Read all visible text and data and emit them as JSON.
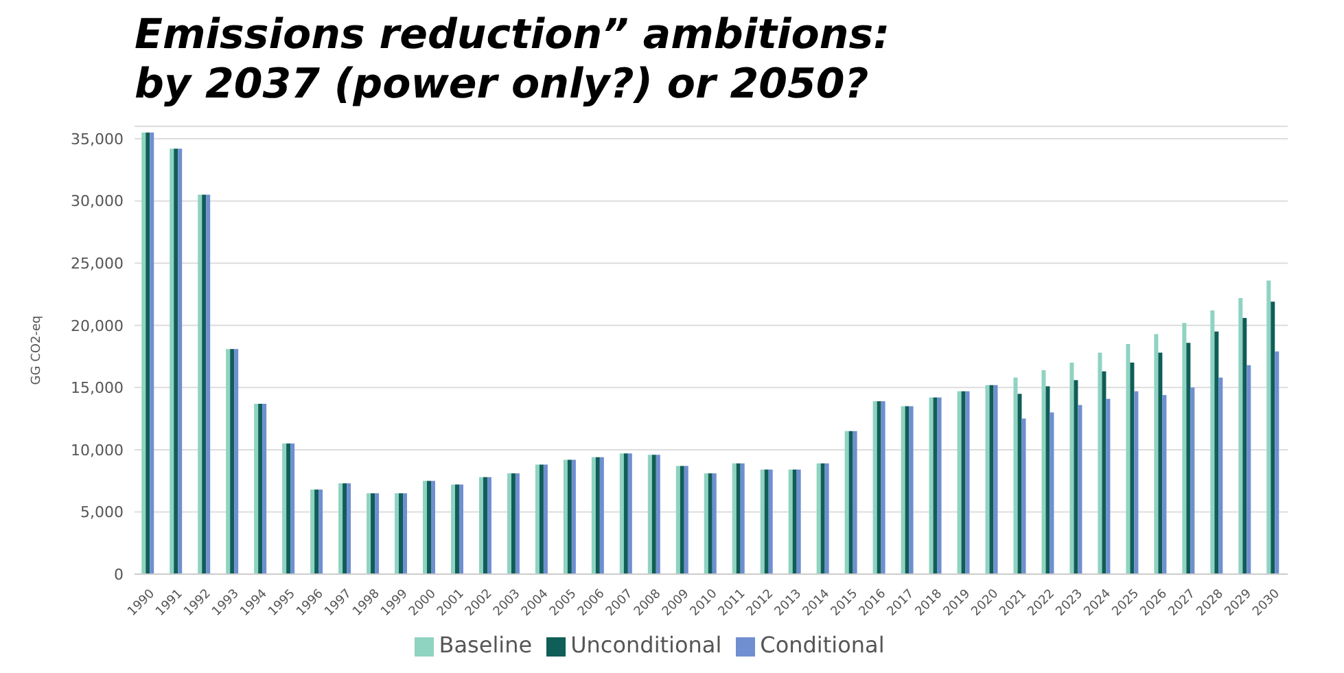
{
  "chart_data": {
    "type": "bar",
    "title": "Emissions reduction” ambitions: by 2037 (power only?) or 2050?",
    "ylabel": "GG CO2-eq",
    "categories": [
      "1990",
      "1991",
      "1992",
      "1993",
      "1994",
      "1995",
      "1996",
      "1997",
      "1998",
      "1999",
      "2000",
      "2001",
      "2002",
      "2003",
      "2004",
      "2005",
      "2006",
      "2007",
      "2008",
      "2009",
      "2010",
      "2011",
      "2012",
      "2013",
      "2014",
      "2015",
      "2016",
      "2017",
      "2018",
      "2019",
      "2020",
      "2021",
      "2022",
      "2023",
      "2024",
      "2025",
      "2026",
      "2027",
      "2028",
      "2029",
      "2030"
    ],
    "series": [
      {
        "name": "Baseline",
        "color": "#8fd3c1",
        "values": [
          35500,
          34200,
          30500,
          18100,
          13700,
          10500,
          6800,
          7300,
          6500,
          6500,
          7500,
          7200,
          7800,
          8100,
          8800,
          9200,
          9400,
          9700,
          9600,
          8700,
          8100,
          8900,
          8400,
          8400,
          8900,
          11500,
          13900,
          13500,
          14200,
          14700,
          15200,
          15800,
          16400,
          17000,
          17800,
          18500,
          19300,
          20200,
          21200,
          22200,
          23600
        ]
      },
      {
        "name": "Unconditional",
        "color": "#0f5e57",
        "values": [
          35500,
          34200,
          30500,
          18100,
          13700,
          10500,
          6800,
          7300,
          6500,
          6500,
          7500,
          7200,
          7800,
          8100,
          8800,
          9200,
          9400,
          9700,
          9600,
          8700,
          8100,
          8900,
          8400,
          8400,
          8900,
          11500,
          13900,
          13500,
          14200,
          14700,
          15200,
          14500,
          15100,
          15600,
          16300,
          17000,
          17800,
          18600,
          19500,
          20600,
          21900
        ]
      },
      {
        "name": "Conditional",
        "color": "#6f8fd0",
        "values": [
          35500,
          34200,
          30500,
          18100,
          13700,
          10500,
          6800,
          7300,
          6500,
          6500,
          7500,
          7200,
          7800,
          8100,
          8800,
          9200,
          9400,
          9700,
          9600,
          8700,
          8100,
          8900,
          8400,
          8400,
          8900,
          11500,
          13900,
          13500,
          14200,
          14700,
          15200,
          12500,
          13000,
          13600,
          14100,
          14700,
          14400,
          15000,
          15800,
          16800,
          17900
        ]
      }
    ],
    "ylim": [
      0,
      36000
    ],
    "yticks": [
      {
        "value": 0,
        "label": "0"
      },
      {
        "value": 5000,
        "label": "5,000"
      },
      {
        "value": 10000,
        "label": "10,000"
      },
      {
        "value": 15000,
        "label": "15,000"
      },
      {
        "value": 20000,
        "label": "20,000"
      },
      {
        "value": 25000,
        "label": "25,000"
      },
      {
        "value": 30000,
        "label": "30,000"
      },
      {
        "value": 35000,
        "label": "35,000"
      }
    ],
    "grid": "y",
    "legend": "bottom"
  }
}
